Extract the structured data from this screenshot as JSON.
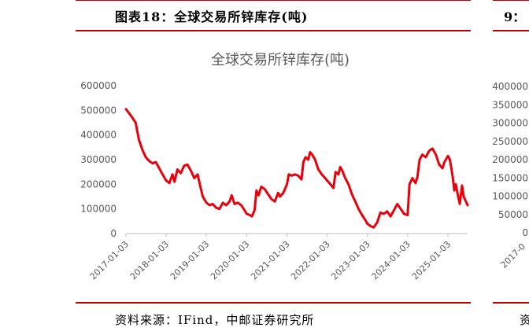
{
  "figure": {
    "label": "图表18：全球交易所锌库存(吨)",
    "next_label": "9：",
    "source": "资料来源：IFind，中邮证券研究所",
    "next_source": "资"
  },
  "colors": {
    "line": "#e8000b",
    "rule": "#c00000",
    "axis": "#595959",
    "grid_text": "#595959"
  },
  "chart_data": {
    "type": "line",
    "title": "全球交易所锌库存(吨)",
    "xlabel": "",
    "ylabel": "",
    "ylim": [
      0,
      600000
    ],
    "yticks": [
      0,
      100000,
      200000,
      300000,
      400000,
      500000,
      600000
    ],
    "ytick_labels": [
      "0",
      "100000",
      "200000",
      "300000",
      "400000",
      "500000",
      "600000"
    ],
    "xticks": [
      "2017-01-03",
      "2018-01-03",
      "2019-01-03",
      "2020-01-03",
      "2021-01-03",
      "2022-01-03",
      "2023-01-03",
      "2024-01-03",
      "2025-01-03"
    ],
    "x_start": "2017-01-03",
    "x_end": "2025-06-30",
    "grid": false,
    "series": [
      {
        "name": "",
        "color": "#e8000b",
        "points": [
          [
            "2017-01-03",
            505000
          ],
          [
            "2017-02-15",
            480000
          ],
          [
            "2017-04-01",
            450000
          ],
          [
            "2017-05-01",
            380000
          ],
          [
            "2017-06-01",
            340000
          ],
          [
            "2017-07-01",
            310000
          ],
          [
            "2017-08-01",
            295000
          ],
          [
            "2017-09-01",
            285000
          ],
          [
            "2017-10-01",
            290000
          ],
          [
            "2017-11-01",
            265000
          ],
          [
            "2017-12-01",
            240000
          ],
          [
            "2018-01-03",
            215000
          ],
          [
            "2018-02-01",
            205000
          ],
          [
            "2018-03-01",
            240000
          ],
          [
            "2018-03-20",
            210000
          ],
          [
            "2018-04-15",
            260000
          ],
          [
            "2018-05-15",
            245000
          ],
          [
            "2018-06-15",
            275000
          ],
          [
            "2018-07-15",
            280000
          ],
          [
            "2018-08-15",
            255000
          ],
          [
            "2018-09-15",
            225000
          ],
          [
            "2018-10-15",
            240000
          ],
          [
            "2018-11-15",
            180000
          ],
          [
            "2018-12-01",
            150000
          ],
          [
            "2019-01-03",
            125000
          ],
          [
            "2019-02-01",
            115000
          ],
          [
            "2019-03-01",
            120000
          ],
          [
            "2019-04-01",
            105000
          ],
          [
            "2019-05-01",
            100000
          ],
          [
            "2019-06-01",
            125000
          ],
          [
            "2019-07-01",
            115000
          ],
          [
            "2019-08-01",
            130000
          ],
          [
            "2019-08-20",
            155000
          ],
          [
            "2019-09-15",
            120000
          ],
          [
            "2019-10-15",
            125000
          ],
          [
            "2019-11-15",
            115000
          ],
          [
            "2019-12-15",
            95000
          ],
          [
            "2020-01-03",
            80000
          ],
          [
            "2020-02-01",
            75000
          ],
          [
            "2020-02-20",
            70000
          ],
          [
            "2020-03-15",
            95000
          ],
          [
            "2020-04-01",
            175000
          ],
          [
            "2020-04-20",
            155000
          ],
          [
            "2020-05-15",
            190000
          ],
          [
            "2020-06-15",
            180000
          ],
          [
            "2020-07-15",
            160000
          ],
          [
            "2020-08-15",
            140000
          ],
          [
            "2020-09-15",
            130000
          ],
          [
            "2020-10-15",
            165000
          ],
          [
            "2020-11-01",
            150000
          ],
          [
            "2020-12-01",
            165000
          ],
          [
            "2021-01-03",
            200000
          ],
          [
            "2021-01-20",
            240000
          ],
          [
            "2021-02-15",
            235000
          ],
          [
            "2021-03-15",
            240000
          ],
          [
            "2021-04-15",
            235000
          ],
          [
            "2021-05-15",
            220000
          ],
          [
            "2021-06-01",
            290000
          ],
          [
            "2021-06-20",
            310000
          ],
          [
            "2021-07-15",
            300000
          ],
          [
            "2021-08-01",
            330000
          ],
          [
            "2021-08-20",
            320000
          ],
          [
            "2021-09-15",
            300000
          ],
          [
            "2021-10-15",
            260000
          ],
          [
            "2021-11-15",
            240000
          ],
          [
            "2021-12-15",
            225000
          ],
          [
            "2022-01-03",
            215000
          ],
          [
            "2022-02-01",
            200000
          ],
          [
            "2022-03-01",
            185000
          ],
          [
            "2022-03-20",
            250000
          ],
          [
            "2022-04-15",
            240000
          ],
          [
            "2022-05-01",
            270000
          ],
          [
            "2022-05-20",
            255000
          ],
          [
            "2022-06-15",
            225000
          ],
          [
            "2022-07-15",
            200000
          ],
          [
            "2022-08-15",
            160000
          ],
          [
            "2022-09-15",
            130000
          ],
          [
            "2022-10-15",
            100000
          ],
          [
            "2022-11-15",
            75000
          ],
          [
            "2022-12-15",
            55000
          ],
          [
            "2023-01-03",
            40000
          ],
          [
            "2023-02-01",
            30000
          ],
          [
            "2023-03-01",
            25000
          ],
          [
            "2023-04-01",
            45000
          ],
          [
            "2023-05-01",
            85000
          ],
          [
            "2023-06-01",
            80000
          ],
          [
            "2023-07-01",
            90000
          ],
          [
            "2023-08-01",
            70000
          ],
          [
            "2023-09-01",
            95000
          ],
          [
            "2023-10-01",
            120000
          ],
          [
            "2023-11-01",
            100000
          ],
          [
            "2023-12-01",
            80000
          ],
          [
            "2024-01-03",
            75000
          ],
          [
            "2024-01-20",
            200000
          ],
          [
            "2024-02-15",
            225000
          ],
          [
            "2024-03-15",
            205000
          ],
          [
            "2024-04-01",
            230000
          ],
          [
            "2024-04-20",
            300000
          ],
          [
            "2024-05-15",
            320000
          ],
          [
            "2024-06-15",
            310000
          ],
          [
            "2024-07-15",
            335000
          ],
          [
            "2024-08-15",
            345000
          ],
          [
            "2024-09-15",
            320000
          ],
          [
            "2024-10-15",
            280000
          ],
          [
            "2024-11-15",
            265000
          ],
          [
            "2024-12-01",
            290000
          ],
          [
            "2024-12-15",
            300000
          ],
          [
            "2025-01-03",
            315000
          ],
          [
            "2025-01-20",
            300000
          ],
          [
            "2025-02-15",
            230000
          ],
          [
            "2025-03-01",
            175000
          ],
          [
            "2025-03-15",
            200000
          ],
          [
            "2025-04-01",
            160000
          ],
          [
            "2025-04-20",
            120000
          ],
          [
            "2025-05-10",
            195000
          ],
          [
            "2025-05-25",
            150000
          ],
          [
            "2025-06-15",
            130000
          ],
          [
            "2025-06-30",
            115000
          ]
        ]
      }
    ]
  },
  "right_chart": {
    "ytick_labels": [
      "400000",
      "350000",
      "300000",
      "250000",
      "200000",
      "150000",
      "100000",
      "50000",
      "0"
    ],
    "xtick_label": "2017-0"
  }
}
